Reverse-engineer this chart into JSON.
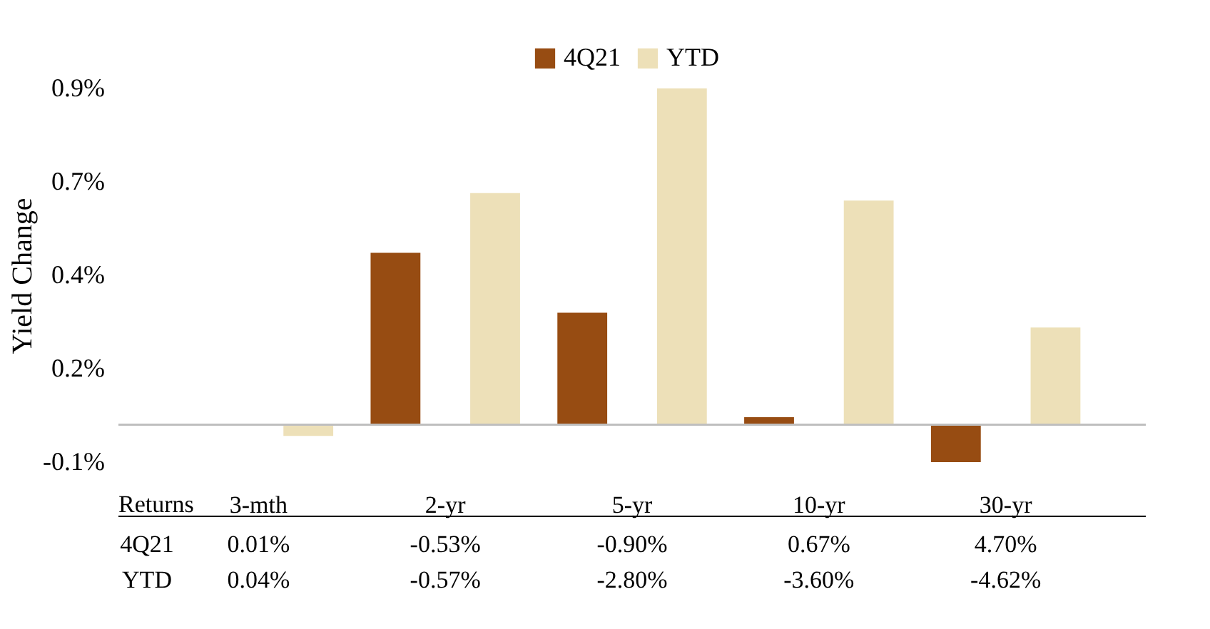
{
  "chart_data": {
    "type": "bar",
    "ylabel": "Yield Change",
    "categories": [
      "3-mth",
      "2-yr",
      "5-yr",
      "10-yr",
      "30-yr"
    ],
    "series": [
      {
        "name": "4Q21",
        "color": "#974c12",
        "values": [
          0.0,
          0.46,
          0.3,
          0.02,
          -0.1
        ]
      },
      {
        "name": "YTD",
        "color": "#ede0b8",
        "values": [
          -0.03,
          0.62,
          0.9,
          0.6,
          0.26
        ]
      }
    ],
    "ylim": [
      -0.1,
      0.9
    ],
    "yticks": [
      {
        "value": -0.1,
        "label": "-0.1%"
      },
      {
        "value": 0.15,
        "label": "0.2%"
      },
      {
        "value": 0.4,
        "label": "0.4%"
      },
      {
        "value": 0.65,
        "label": "0.7%"
      },
      {
        "value": 0.9,
        "label": "0.9%"
      }
    ],
    "grid": false,
    "legend": "top",
    "annotations": [
      "Returns",
      "4Q21",
      "0.01%",
      "-0.53%",
      "-0.90%",
      "0.67%",
      "4.70%",
      "YTD",
      "0.04%",
      "-0.57%",
      "-2.80%",
      "-3.60%",
      "-4.62%"
    ]
  }
}
